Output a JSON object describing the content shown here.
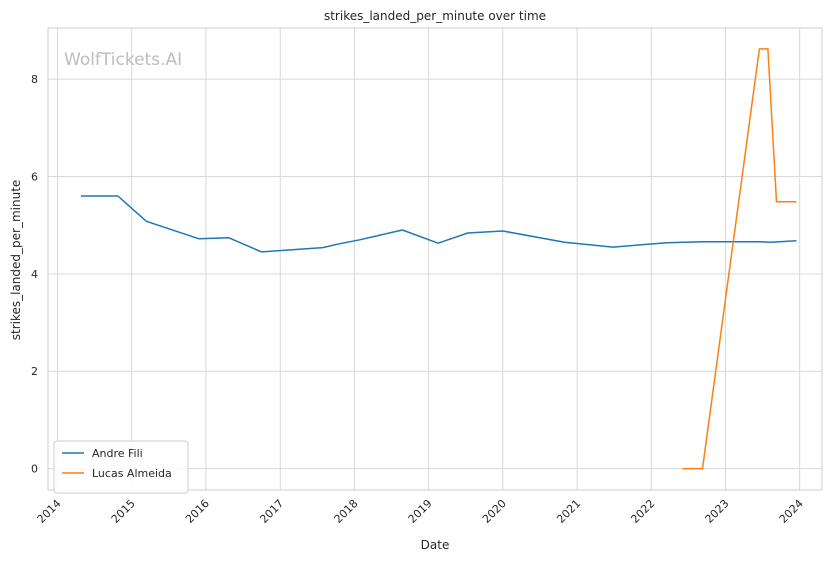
{
  "chart_data": {
    "type": "line",
    "title": "strikes_landed_per_minute over time",
    "xlabel": "Date",
    "ylabel": "strikes_landed_per_minute",
    "watermark": "WolfTickets.AI",
    "x_ticks": [
      "2014",
      "2015",
      "2016",
      "2017",
      "2018",
      "2019",
      "2020",
      "2021",
      "2022",
      "2023",
      "2024"
    ],
    "y_ticks": [
      0,
      2,
      4,
      6,
      8
    ],
    "xlim": [
      "2013-11-15",
      "2024-04-20"
    ],
    "ylim": [
      -0.44,
      9.05
    ],
    "grid": true,
    "legend_position": "lower-left",
    "series": [
      {
        "name": "Andre Fili",
        "color": "#1f77b4",
        "points": [
          [
            "2014-04-26",
            5.6
          ],
          [
            "2014-10-25",
            5.6
          ],
          [
            "2015-03-14",
            5.08
          ],
          [
            "2015-11-28",
            4.72
          ],
          [
            "2016-04-23",
            4.74
          ],
          [
            "2016-10-01",
            4.45
          ],
          [
            "2017-07-29",
            4.54
          ],
          [
            "2017-10-21",
            4.62
          ],
          [
            "2018-01-27",
            4.7
          ],
          [
            "2018-08-25",
            4.9
          ],
          [
            "2019-02-17",
            4.63
          ],
          [
            "2019-07-13",
            4.84
          ],
          [
            "2020-01-01",
            4.88
          ],
          [
            "2020-10-31",
            4.65
          ],
          [
            "2021-06-26",
            4.55
          ],
          [
            "2022-03-19",
            4.64
          ],
          [
            "2022-09-10",
            4.66
          ],
          [
            "2023-06-17",
            4.66
          ],
          [
            "2023-08-12",
            4.65
          ],
          [
            "2023-12-16",
            4.68
          ]
        ]
      },
      {
        "name": "Lucas Almeida",
        "color": "#ff7f0e",
        "points": [
          [
            "2022-06-04",
            0.0
          ],
          [
            "2022-09-10",
            0.0
          ],
          [
            "2023-06-17",
            8.62
          ],
          [
            "2023-07-29",
            8.62
          ],
          [
            "2023-09-09",
            5.48
          ],
          [
            "2023-12-16",
            5.48
          ]
        ]
      }
    ]
  }
}
